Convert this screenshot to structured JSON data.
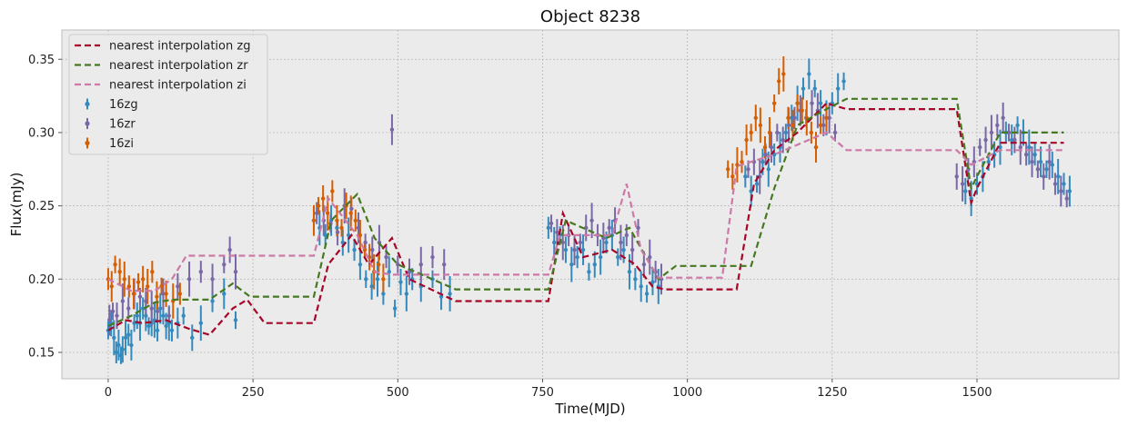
{
  "chart_data": {
    "type": "scatter",
    "title": "Object 8238",
    "xlabel": "Time(MJD)",
    "ylabel": "Flux(mJy)",
    "xlim": [
      -80,
      1745
    ],
    "ylim": [
      0.132,
      0.37
    ],
    "xticks": [
      0,
      250,
      500,
      750,
      1000,
      1250,
      1500
    ],
    "yticks": [
      0.15,
      0.2,
      0.25,
      0.3,
      0.35
    ],
    "ytick_labels": [
      "0.15",
      "0.20",
      "0.25",
      "0.30",
      "0.35"
    ],
    "grid": true,
    "legend_position": "top-left",
    "background": "#ebebeb",
    "lines": [
      {
        "name": "nearest interpolation zg",
        "color": "#a60628",
        "style": "dashed",
        "x": [
          0,
          30,
          60,
          100,
          140,
          175,
          215,
          240,
          270,
          300,
          355,
          380,
          420,
          450,
          490,
          520,
          600,
          760,
          785,
          820,
          870,
          910,
          940,
          960,
          1085,
          1115,
          1150,
          1190,
          1240,
          1275,
          1465,
          1490,
          1500,
          1540,
          1650
        ],
        "y": [
          0.165,
          0.172,
          0.17,
          0.172,
          0.166,
          0.162,
          0.18,
          0.186,
          0.17,
          0.17,
          0.17,
          0.21,
          0.23,
          0.21,
          0.228,
          0.2,
          0.185,
          0.185,
          0.245,
          0.215,
          0.22,
          0.21,
          0.195,
          0.193,
          0.193,
          0.265,
          0.288,
          0.3,
          0.32,
          0.316,
          0.316,
          0.252,
          0.262,
          0.293,
          0.293
        ]
      },
      {
        "name": "nearest interpolation zr",
        "color": "#467821",
        "style": "dashed",
        "x": [
          0,
          40,
          80,
          110,
          140,
          175,
          215,
          245,
          355,
          385,
          430,
          460,
          500,
          530,
          600,
          760,
          790,
          860,
          900,
          950,
          980,
          1110,
          1150,
          1190,
          1240,
          1275,
          1465,
          1490,
          1500,
          1540,
          1650
        ],
        "y": [
          0.168,
          0.175,
          0.184,
          0.186,
          0.186,
          0.186,
          0.197,
          0.188,
          0.188,
          0.24,
          0.258,
          0.228,
          0.21,
          0.205,
          0.193,
          0.193,
          0.24,
          0.228,
          0.235,
          0.2,
          0.209,
          0.209,
          0.262,
          0.305,
          0.316,
          0.323,
          0.323,
          0.262,
          0.27,
          0.3,
          0.3
        ]
      },
      {
        "name": "nearest interpolation zi",
        "color": "#cc79a7",
        "style": "dashed",
        "x": [
          0,
          40,
          80,
          110,
          135,
          200,
          250,
          300,
          355,
          380,
          430,
          460,
          490,
          520,
          760,
          780,
          870,
          895,
          920,
          950,
          1060,
          1085,
          1150,
          1240,
          1275,
          1465,
          1490,
          1500,
          1540,
          1650
        ],
        "y": [
          0.2,
          0.192,
          0.192,
          0.2,
          0.216,
          0.216,
          0.216,
          0.216,
          0.216,
          0.255,
          0.23,
          0.205,
          0.203,
          0.203,
          0.203,
          0.23,
          0.23,
          0.265,
          0.22,
          0.201,
          0.201,
          0.277,
          0.285,
          0.3,
          0.288,
          0.288,
          0.278,
          0.28,
          0.288,
          0.288
        ]
      }
    ],
    "series": [
      {
        "name": "16zg",
        "color": "#348abd",
        "x": [
          0,
          5,
          10,
          14,
          18,
          22,
          25,
          30,
          35,
          40,
          45,
          50,
          55,
          60,
          65,
          70,
          75,
          80,
          85,
          90,
          95,
          100,
          105,
          110,
          120,
          130,
          145,
          160,
          180,
          200,
          220,
          355,
          365,
          375,
          385,
          395,
          405,
          415,
          425,
          435,
          445,
          455,
          465,
          475,
          485,
          495,
          505,
          515,
          525,
          540,
          560,
          575,
          590,
          760,
          770,
          780,
          790,
          800,
          810,
          820,
          830,
          840,
          850,
          860,
          870,
          880,
          890,
          900,
          910,
          920,
          930,
          940,
          950,
          1100,
          1110,
          1120,
          1130,
          1140,
          1150,
          1160,
          1170,
          1180,
          1190,
          1200,
          1210,
          1220,
          1230,
          1240,
          1250,
          1260,
          1270,
          1480,
          1490,
          1500,
          1510,
          1520,
          1530,
          1540,
          1550,
          1560,
          1570,
          1580,
          1590,
          1600,
          1610,
          1620,
          1630,
          1640,
          1650,
          1660
        ],
        "y": [
          0.165,
          0.17,
          0.16,
          0.15,
          0.155,
          0.148,
          0.152,
          0.16,
          0.162,
          0.155,
          0.17,
          0.175,
          0.17,
          0.18,
          0.175,
          0.168,
          0.17,
          0.172,
          0.165,
          0.18,
          0.175,
          0.168,
          0.17,
          0.165,
          0.17,
          0.175,
          0.16,
          0.17,
          0.185,
          0.19,
          0.172,
          0.24,
          0.235,
          0.23,
          0.24,
          0.235,
          0.225,
          0.23,
          0.22,
          0.21,
          0.2,
          0.195,
          0.2,
          0.19,
          0.205,
          0.18,
          0.198,
          0.19,
          0.2,
          0.195,
          0.2,
          0.188,
          0.19,
          0.235,
          0.225,
          0.23,
          0.22,
          0.21,
          0.215,
          0.22,
          0.205,
          0.21,
          0.215,
          0.225,
          0.23,
          0.215,
          0.22,
          0.205,
          0.2,
          0.195,
          0.19,
          0.198,
          0.195,
          0.27,
          0.26,
          0.265,
          0.28,
          0.275,
          0.285,
          0.29,
          0.3,
          0.31,
          0.32,
          0.33,
          0.34,
          0.33,
          0.32,
          0.31,
          0.32,
          0.33,
          0.335,
          0.26,
          0.255,
          0.265,
          0.27,
          0.28,
          0.285,
          0.29,
          0.3,
          0.295,
          0.305,
          0.3,
          0.29,
          0.285,
          0.28,
          0.275,
          0.278,
          0.27,
          0.265,
          0.26
        ]
      },
      {
        "name": "16zr",
        "color": "#7a68a6",
        "x": [
          2,
          8,
          15,
          25,
          35,
          45,
          55,
          65,
          75,
          85,
          95,
          105,
          120,
          140,
          160,
          180,
          200,
          210,
          220,
          360,
          372,
          384,
          396,
          408,
          420,
          432,
          444,
          456,
          468,
          480,
          490,
          500,
          520,
          540,
          560,
          580,
          765,
          775,
          785,
          795,
          805,
          815,
          825,
          835,
          845,
          855,
          865,
          875,
          885,
          895,
          905,
          915,
          925,
          935,
          945,
          955,
          1105,
          1115,
          1125,
          1135,
          1145,
          1155,
          1165,
          1175,
          1185,
          1195,
          1205,
          1215,
          1225,
          1235,
          1245,
          1255,
          1465,
          1475,
          1485,
          1495,
          1505,
          1515,
          1525,
          1535,
          1545,
          1555,
          1565,
          1575,
          1585,
          1595,
          1605,
          1615,
          1625,
          1635,
          1645,
          1655
        ],
        "y": [
          0.172,
          0.178,
          0.175,
          0.185,
          0.18,
          0.19,
          0.188,
          0.185,
          0.18,
          0.178,
          0.19,
          0.175,
          0.195,
          0.2,
          0.205,
          0.2,
          0.21,
          0.22,
          0.205,
          0.245,
          0.24,
          0.238,
          0.232,
          0.25,
          0.248,
          0.235,
          0.225,
          0.22,
          0.225,
          0.215,
          0.302,
          0.21,
          0.205,
          0.21,
          0.215,
          0.21,
          0.238,
          0.232,
          0.225,
          0.23,
          0.22,
          0.225,
          0.235,
          0.24,
          0.23,
          0.228,
          0.235,
          0.24,
          0.225,
          0.23,
          0.22,
          0.235,
          0.21,
          0.215,
          0.205,
          0.2,
          0.275,
          0.28,
          0.27,
          0.285,
          0.29,
          0.3,
          0.295,
          0.305,
          0.31,
          0.315,
          0.31,
          0.32,
          0.315,
          0.305,
          0.31,
          0.3,
          0.27,
          0.265,
          0.275,
          0.28,
          0.29,
          0.295,
          0.3,
          0.305,
          0.31,
          0.3,
          0.295,
          0.29,
          0.285,
          0.28,
          0.275,
          0.27,
          0.28,
          0.265,
          0.26,
          0.255
        ]
      },
      {
        "name": "16zi",
        "color": "#d55e00",
        "x": [
          0,
          6,
          12,
          20,
          28,
          36,
          44,
          52,
          60,
          68,
          76,
          84,
          92,
          100,
          112,
          124,
          355,
          363,
          371,
          379,
          387,
          395,
          403,
          411,
          419,
          427,
          435,
          443,
          451,
          459,
          467,
          475,
          1070,
          1078,
          1086,
          1094,
          1102,
          1110,
          1118,
          1126,
          1134,
          1142,
          1150,
          1158,
          1166,
          1174,
          1182,
          1190,
          1198,
          1206,
          1214,
          1222,
          1230,
          1240
        ],
        "y": [
          0.2,
          0.195,
          0.21,
          0.205,
          0.2,
          0.195,
          0.19,
          0.198,
          0.2,
          0.195,
          0.205,
          0.188,
          0.195,
          0.19,
          0.185,
          0.19,
          0.24,
          0.25,
          0.255,
          0.245,
          0.26,
          0.24,
          0.235,
          0.25,
          0.245,
          0.24,
          0.23,
          0.22,
          0.215,
          0.205,
          0.21,
          0.2,
          0.275,
          0.27,
          0.278,
          0.28,
          0.295,
          0.3,
          0.31,
          0.305,
          0.29,
          0.3,
          0.32,
          0.335,
          0.34,
          0.31,
          0.305,
          0.32,
          0.315,
          0.31,
          0.3,
          0.29,
          0.305,
          0.31
        ]
      }
    ]
  }
}
